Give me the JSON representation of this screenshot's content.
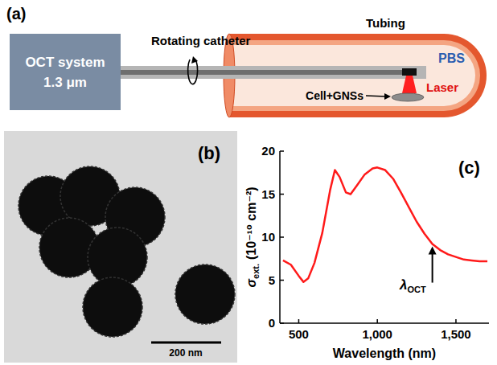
{
  "panel_labels": [
    "(a)",
    "(b)",
    "(c)"
  ],
  "diagram": {
    "system": [
      "OCT system",
      "1.3 μm"
    ],
    "catheter": "Rotating catheter",
    "tubing": "Tubing",
    "medium": "PBS",
    "laser": "Laser",
    "sample": "Cell+GNSs"
  },
  "micrograph": {
    "scale_bar": "200 nm"
  },
  "chart_data": {
    "type": "line",
    "x_label": "Wavelength (nm)",
    "y_label": {
      "symbol": "σ",
      "subscript": "ext.",
      "unit": "(10⁻¹⁰ cm⁻²)"
    },
    "x": [
      400,
      450,
      500,
      530,
      560,
      600,
      650,
      700,
      730,
      760,
      800,
      830,
      870,
      920,
      970,
      1000,
      1050,
      1100,
      1150,
      1200,
      1250,
      1300,
      1350,
      1400,
      1450,
      1500,
      1550,
      1600,
      1650,
      1700
    ],
    "series": [
      {
        "color": "#ff1a1a",
        "values": [
          7.3,
          6.8,
          5.5,
          4.8,
          5.2,
          7.0,
          10.5,
          15.5,
          17.8,
          17.0,
          15.2,
          15.0,
          16.0,
          17.3,
          18.0,
          18.1,
          17.8,
          16.8,
          15.2,
          13.5,
          11.8,
          10.4,
          9.2,
          8.5,
          8.0,
          7.7,
          7.4,
          7.3,
          7.2,
          7.2
        ]
      }
    ],
    "xlim": [
      380,
      1710
    ],
    "xticks": [
      500,
      {
        "value": 1000,
        "label": "1,000"
      },
      {
        "value": 1500,
        "label": "1,500"
      }
    ],
    "ylim": [
      0,
      20
    ],
    "yticks": [
      0,
      5,
      10,
      15,
      20
    ],
    "grid": false,
    "annotations": [
      {
        "symbol": "λ",
        "subscript": "OCT",
        "x": 1350,
        "y": 9.2
      }
    ]
  }
}
